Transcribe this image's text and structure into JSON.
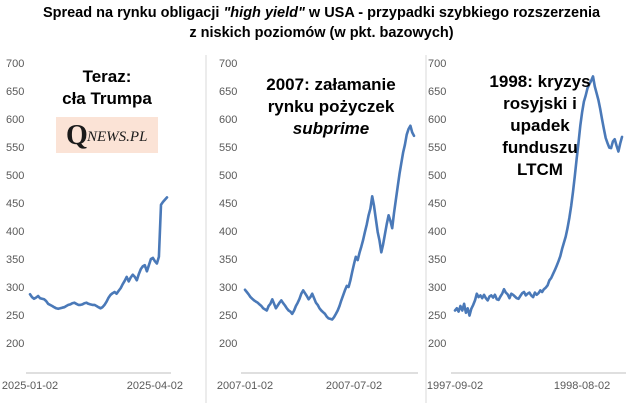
{
  "title": {
    "part1": "Spread na rynku obligacji ",
    "part2_italic": "\"high yield\"",
    "part3": " w USA - przypadki szybkiego rozszerzenia",
    "line2": "z niskich poziomów (w pkt. bazowych)"
  },
  "colors": {
    "line": "#4a79b8",
    "gridline": "#d9d9d9",
    "logo_bg": "#fbe3d6"
  },
  "logo": {
    "q": "Q",
    "rest": "NEWS.PL"
  },
  "chart_data": [
    {
      "type": "line",
      "annotation": [
        "Teraz:",
        "cła Trumpa"
      ],
      "ylim": [
        200,
        700
      ],
      "yticks": [
        200,
        250,
        300,
        350,
        400,
        450,
        500,
        550,
        600,
        650,
        700
      ],
      "xlabels": [
        "2025-01-02",
        "2025-04-02"
      ],
      "xlabel_index": [
        0,
        62
      ],
      "y": [
        287,
        282,
        279,
        281,
        284,
        280,
        279,
        278,
        275,
        270,
        268,
        266,
        264,
        262,
        261,
        262,
        263,
        264,
        266,
        268,
        269,
        271,
        272,
        270,
        268,
        268,
        269,
        271,
        272,
        270,
        269,
        268,
        268,
        266,
        264,
        262,
        264,
        268,
        274,
        281,
        286,
        289,
        291,
        288,
        293,
        298,
        305,
        311,
        318,
        310,
        317,
        322,
        318,
        312,
        323,
        332,
        337,
        339,
        328,
        339,
        350,
        352,
        346,
        342,
        354,
        447,
        452,
        456,
        460
      ]
    },
    {
      "type": "line",
      "annotation": [
        "2007: załamanie",
        "rynku pożyczek",
        "subprime"
      ],
      "ylim": [
        200,
        700
      ],
      "yticks": [
        200,
        250,
        300,
        350,
        400,
        450,
        500,
        550,
        600,
        650,
        700
      ],
      "xlabels": [
        "2007-01-02",
        "2007-07-02"
      ],
      "xlabel_index": [
        0,
        60
      ],
      "y": [
        295,
        291,
        287,
        282,
        279,
        276,
        274,
        272,
        269,
        266,
        262,
        260,
        258,
        266,
        270,
        278,
        270,
        262,
        267,
        272,
        276,
        271,
        267,
        262,
        258,
        256,
        252,
        258,
        266,
        272,
        279,
        288,
        294,
        289,
        284,
        278,
        282,
        288,
        280,
        272,
        268,
        262,
        258,
        255,
        252,
        247,
        244,
        243,
        242,
        246,
        252,
        258,
        266,
        276,
        285,
        294,
        302,
        300,
        312,
        327,
        341,
        354,
        348,
        361,
        372,
        384,
        398,
        412,
        428,
        440,
        462,
        445,
        422,
        398,
        383,
        362,
        376,
        394,
        412,
        428,
        418,
        405,
        432,
        455,
        478,
        502,
        521,
        540,
        554,
        572,
        582,
        588,
        576,
        570
      ]
    },
    {
      "type": "line",
      "annotation": [
        "1998: kryzys",
        "rosyjski i",
        "upadek",
        "funduszu",
        "LTCM"
      ],
      "ylim": [
        200,
        700
      ],
      "yticks": [
        200,
        250,
        300,
        350,
        400,
        450,
        500,
        550,
        600,
        650,
        700
      ],
      "xlabels": [
        "1997-09-02",
        "1998-08-02"
      ],
      "xlabel_index": [
        0,
        70
      ],
      "y": [
        258,
        262,
        256,
        266,
        258,
        270,
        254,
        262,
        249,
        261,
        268,
        276,
        288,
        282,
        285,
        280,
        286,
        280,
        276,
        283,
        285,
        281,
        286,
        278,
        277,
        283,
        288,
        296,
        290,
        287,
        280,
        288,
        286,
        283,
        280,
        279,
        284,
        289,
        291,
        285,
        288,
        290,
        285,
        282,
        290,
        286,
        289,
        294,
        291,
        296,
        299,
        303,
        312,
        316,
        323,
        330,
        338,
        346,
        355,
        368,
        379,
        390,
        405,
        424,
        445,
        470,
        498,
        528,
        556,
        588,
        612,
        631,
        642,
        655,
        662,
        668,
        676,
        658,
        646,
        634,
        618,
        600,
        583,
        566,
        557,
        549,
        548,
        560,
        564,
        552,
        542,
        556,
        568
      ]
    }
  ]
}
